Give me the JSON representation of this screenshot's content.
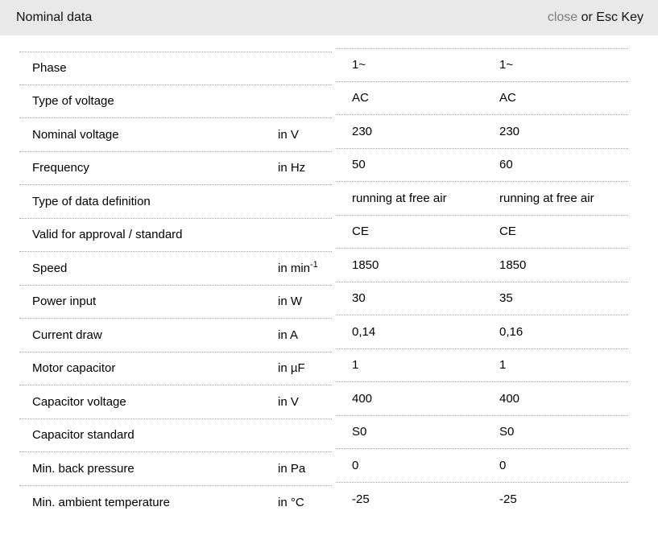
{
  "header": {
    "title": "Nominal data",
    "close_label": "close",
    "close_suffix": " or Esc Key"
  },
  "colors": {
    "header_bg": "#e9e9e9",
    "close_link": "#7d7d7d",
    "row_border": "#a6a6a6"
  },
  "table": {
    "rows": [
      {
        "label": "Phase",
        "unit": "",
        "unit_sup": "",
        "values": [
          "1~",
          "1~"
        ]
      },
      {
        "label": "Type of voltage",
        "unit": "",
        "unit_sup": "",
        "values": [
          "AC",
          "AC"
        ]
      },
      {
        "label": "Nominal voltage",
        "unit": "in V",
        "unit_sup": "",
        "values": [
          "230",
          "230"
        ]
      },
      {
        "label": "Frequency",
        "unit": "in Hz",
        "unit_sup": "",
        "values": [
          "50",
          "60"
        ]
      },
      {
        "label": "Type of data definition",
        "unit": "",
        "unit_sup": "",
        "values": [
          "running at free air",
          "running at free air"
        ]
      },
      {
        "label": "Valid for approval / standard",
        "unit": "",
        "unit_sup": "",
        "values": [
          "CE",
          "CE"
        ]
      },
      {
        "label": "Speed",
        "unit": "in min",
        "unit_sup": "-1",
        "values": [
          "1850",
          "1850"
        ]
      },
      {
        "label": "Power input",
        "unit": "in W",
        "unit_sup": "",
        "values": [
          "30",
          "35"
        ]
      },
      {
        "label": "Current draw",
        "unit": "in A",
        "unit_sup": "",
        "values": [
          "0,14",
          "0,16"
        ]
      },
      {
        "label": "Motor capacitor",
        "unit": "in µF",
        "unit_sup": "",
        "values": [
          "1",
          "1"
        ]
      },
      {
        "label": "Capacitor voltage",
        "unit": "in V",
        "unit_sup": "",
        "values": [
          "400",
          "400"
        ]
      },
      {
        "label": "Capacitor standard",
        "unit": "",
        "unit_sup": "",
        "values": [
          "S0",
          "S0"
        ]
      },
      {
        "label": "Min. back pressure",
        "unit": "in Pa",
        "unit_sup": "",
        "values": [
          "0",
          "0"
        ]
      },
      {
        "label": "Min. ambient temperature",
        "unit": "in °C",
        "unit_sup": "",
        "values": [
          "-25",
          "-25"
        ]
      }
    ]
  }
}
